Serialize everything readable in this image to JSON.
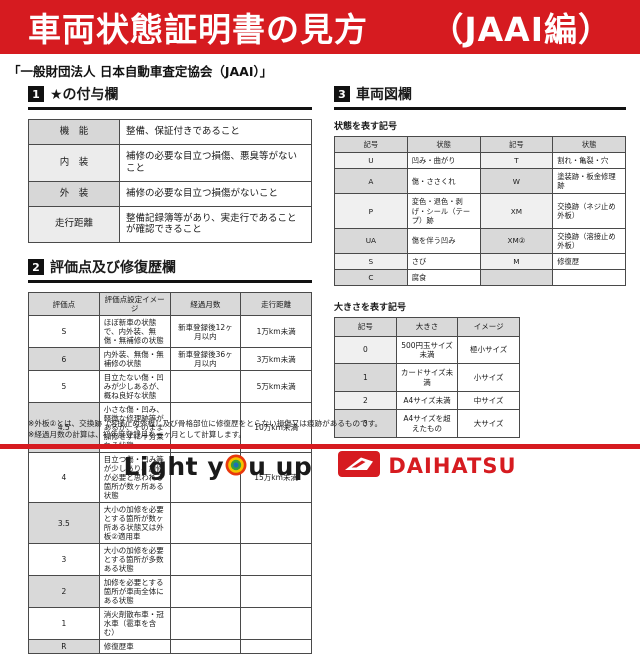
{
  "colors": {
    "accent_red": "#d61b20",
    "header_gray": "#d9d9d9"
  },
  "banner": {
    "title_left": "車両状態証明書の見方",
    "title_right": "（JAAI編）"
  },
  "subtitle": "「一般財団法人 日本自動車査定協会（JAAI）」",
  "section1": {
    "number": "1",
    "title": "★の付与欄",
    "table": {
      "rows": [
        [
          "機　能",
          "整備、保証付きであること"
        ],
        [
          "内　装",
          "補修の必要な目立つ損傷、悪臭等がないこと"
        ],
        [
          "外　装",
          "補修の必要な目立つ損傷がないこと"
        ],
        [
          "走行距離",
          "整備記録簿等があり、実走行であることが確認できること"
        ]
      ]
    }
  },
  "section2": {
    "number": "2",
    "title": "評価点及び修復歴欄",
    "table": {
      "headers": [
        "評価点",
        "評価点設定イメージ",
        "経過月数",
        "走行距離"
      ],
      "rows": [
        [
          "S",
          "ほぼ新車の状態で、内外装、無傷・無補修の状態",
          "新車登録後12ヶ月以内",
          "1万km未満"
        ],
        [
          "6",
          "内外装、無傷・無補修の状態",
          "新車登録後36ヶ月以内",
          "3万km未満"
        ],
        [
          "5",
          "目立たない傷・凹みが少しあるが、概ね良好な状態",
          "",
          "5万km未満"
        ],
        [
          "4.5",
          "小さな傷・凹み、軽微な修理跡等があるが、そのまま加修せずに十分乗れる状態",
          "",
          "10万km未満"
        ],
        [
          "4",
          "目立つ傷・凹み等が少しあり、加修が必要と思われる箇所が数ヶ所ある状態",
          "",
          "15万km未満"
        ],
        [
          "3.5",
          "大小の加修を必要とする箇所が数ヶ所ある状態又は外板②適用車",
          "",
          ""
        ],
        [
          "3",
          "大小の加修を必要とする箇所が多数ある状態",
          "",
          ""
        ],
        [
          "2",
          "加修を必要とする箇所が車両全体にある状態",
          "",
          ""
        ],
        [
          "1",
          "消火剤散布車・冠水車（雹車を含む）",
          "",
          ""
        ],
        [
          "R",
          "修復歴車",
          "",
          ""
        ]
      ]
    }
  },
  "section3": {
    "number": "3",
    "title": "車両図欄",
    "symbols": {
      "caption": "状態を表す記号",
      "headers": [
        "記号",
        "状態",
        "記号",
        "状態"
      ],
      "rows": [
        [
          "U",
          "凹み・曲がり",
          "T",
          "割れ・亀裂・穴"
        ],
        [
          "A",
          "傷・ささくれ",
          "W",
          "塗装跡・板金修理跡"
        ],
        [
          "P",
          "変色・退色・剥げ・シール（テープ）跡",
          "XM",
          "交換跡（ネジ止め外板）"
        ],
        [
          "UA",
          "傷を伴う凹み",
          "XM②",
          "交換跡（溶接止め外板）"
        ],
        [
          "S",
          "さび",
          "M",
          "修復歴"
        ],
        [
          "C",
          "腐食",
          "",
          ""
        ]
      ]
    },
    "sizes": {
      "caption": "大きさを表す記号",
      "headers": [
        "記号",
        "大きさ",
        "イメージ"
      ],
      "rows": [
        [
          "0",
          "500円玉サイズ未満",
          "極小サイズ"
        ],
        [
          "1",
          "カードサイズ未満",
          "小サイズ"
        ],
        [
          "2",
          "A4サイズ未満",
          "中サイズ"
        ],
        [
          "3",
          "A4サイズを超えたもの",
          "大サイズ"
        ]
      ]
    }
  },
  "footnotes": [
    "※外板②とは、交換跡（溶接止め外板）及び骨格部位に修復歴をとらない損傷又は痕跡があるものです。",
    "※経過月数の計算は、初年度登録月を一ヶ月として計算します。"
  ],
  "footer": {
    "slogan_left": "Light y",
    "slogan_right": "u up",
    "brand": "DAIHATSU",
    "icons": {
      "slogan_o": "target-rings-icon",
      "emblem": "daihatsu-d-emblem-icon"
    }
  }
}
